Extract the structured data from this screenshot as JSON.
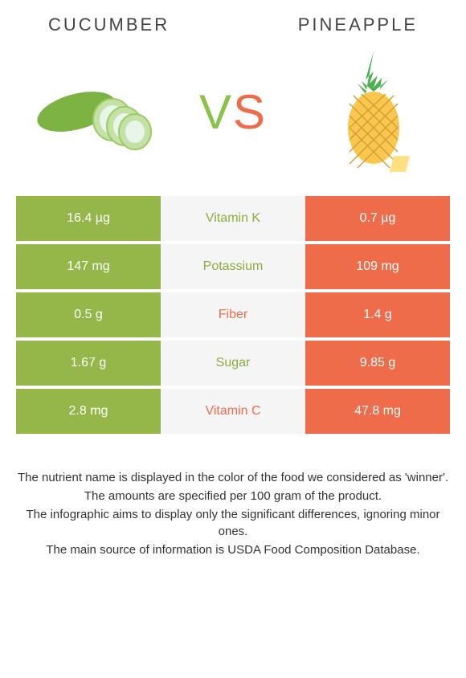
{
  "header": {
    "left_title": "Cucumber",
    "right_title": "Pineapple"
  },
  "vs": {
    "v": "V",
    "s": "S"
  },
  "colors": {
    "green": "#95b74a",
    "orange": "#ef6c4a",
    "green_text": "#8aad3e",
    "orange_text": "#ef6c4a",
    "mid_bg": "#f5f5f5"
  },
  "rows": [
    {
      "left": "16.4 µg",
      "label": "Vitamin K",
      "right": "0.7 µg",
      "winner": "left"
    },
    {
      "left": "147 mg",
      "label": "Potassium",
      "right": "109 mg",
      "winner": "left"
    },
    {
      "left": "0.5 g",
      "label": "Fiber",
      "right": "1.4 g",
      "winner": "right"
    },
    {
      "left": "1.67 g",
      "label": "Sugar",
      "right": "9.85 g",
      "winner": "left"
    },
    {
      "left": "2.8 mg",
      "label": "Vitamin C",
      "right": "47.8 mg",
      "winner": "right"
    }
  ],
  "footer": {
    "line1": "The nutrient name is displayed in the color of the food we considered as 'winner'.",
    "line2": "The amounts are specified per 100 gram of the product.",
    "line3": "The infographic aims to display only the significant differences, ignoring minor ones.",
    "line4": "The main source of information is USDA Food Composition Database."
  }
}
